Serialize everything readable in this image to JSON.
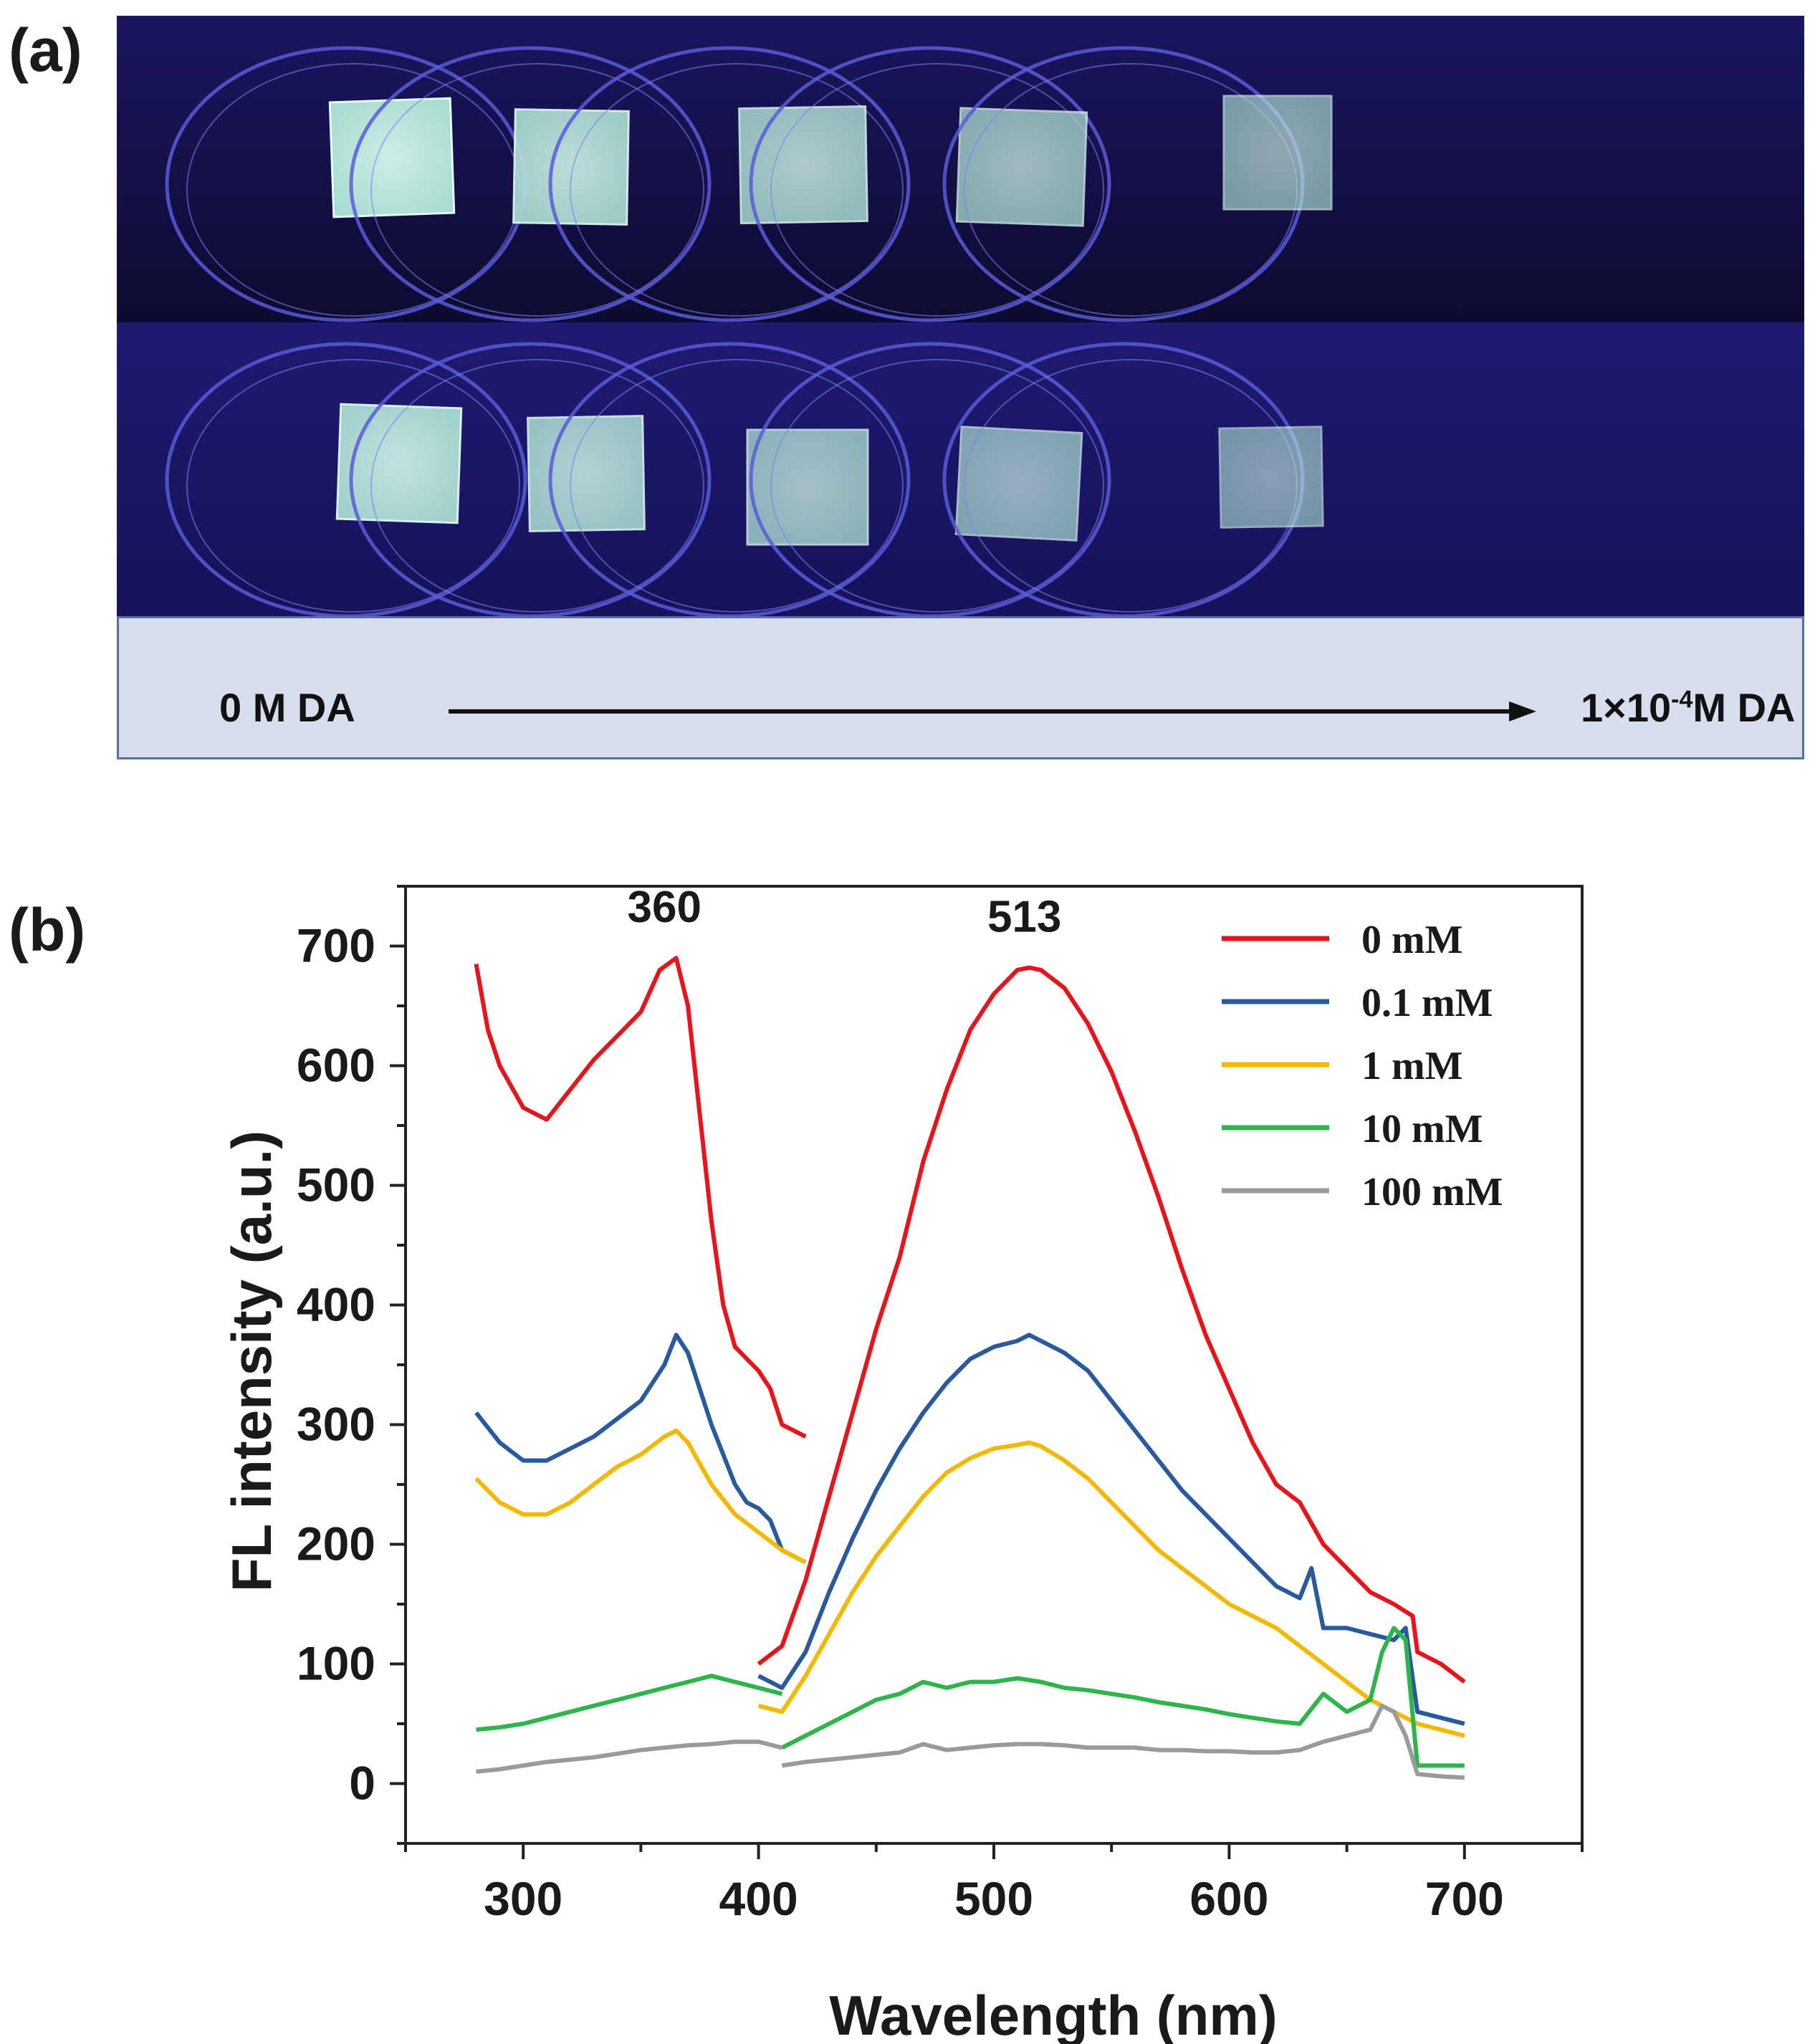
{
  "panel_a": {
    "label": "(a)",
    "start_label": "0 M DA",
    "end_label_prefix": "1×10",
    "end_label_exp": "-4",
    "end_label_suffix": "M DA",
    "colors": {
      "background": "#120e42",
      "dish_rim": "#5a5ad8",
      "film": "#b7e8dc",
      "band": "#d7dfef"
    }
  },
  "panel_b": {
    "label": "(b)"
  },
  "chart_data": {
    "type": "line",
    "xlabel": "Wavelength (nm)",
    "ylabel": "FL intensity (a.u.)",
    "xlim": [
      250,
      750
    ],
    "ylim": [
      -50,
      750
    ],
    "xticks": [
      300,
      400,
      500,
      600,
      700
    ],
    "yticks": [
      0,
      100,
      200,
      300,
      400,
      500,
      600,
      700
    ],
    "legend_position": "top-right",
    "annotations": [
      {
        "text": "360",
        "x": 360,
        "y": 720
      },
      {
        "text": "513",
        "x": 513,
        "y": 712
      }
    ],
    "series": [
      {
        "name": "0 mM",
        "color": "#e8141c",
        "segments": [
          {
            "x": [
              280,
              285,
              290,
              300,
              310,
              320,
              330,
              340,
              350,
              358,
              365,
              370,
              375,
              380,
              385,
              390,
              395,
              400,
              405,
              410,
              415,
              420
            ],
            "y": [
              685,
              630,
              600,
              565,
              555,
              580,
              605,
              625,
              645,
              680,
              690,
              650,
              560,
              470,
              400,
              365,
              355,
              345,
              330,
              300,
              295,
              290
            ]
          },
          {
            "x": [
              400,
              410,
              420,
              430,
              440,
              450,
              460,
              470,
              480,
              490,
              500,
              510,
              515,
              520,
              530,
              540,
              550,
              560,
              570,
              580,
              590,
              600,
              610,
              620,
              630,
              640,
              650,
              660,
              670,
              678,
              680,
              690,
              700
            ],
            "y": [
              100,
              115,
              170,
              240,
              310,
              380,
              440,
              520,
              580,
              630,
              660,
              680,
              682,
              680,
              665,
              635,
              595,
              545,
              490,
              430,
              375,
              330,
              285,
              250,
              235,
              200,
              180,
              160,
              150,
              140,
              110,
              100,
              85
            ]
          }
        ]
      },
      {
        "name": "0.1 mM",
        "color": "#2a5a9e",
        "segments": [
          {
            "x": [
              280,
              290,
              300,
              310,
              320,
              330,
              340,
              350,
              360,
              365,
              370,
              380,
              390,
              395,
              400,
              405,
              410,
              420
            ],
            "y": [
              310,
              285,
              270,
              270,
              280,
              290,
              305,
              320,
              350,
              375,
              360,
              300,
              250,
              235,
              230,
              220,
              195,
              185
            ]
          },
          {
            "x": [
              400,
              410,
              420,
              430,
              440,
              450,
              460,
              470,
              480,
              490,
              500,
              510,
              515,
              520,
              530,
              540,
              550,
              560,
              570,
              580,
              590,
              600,
              610,
              620,
              630,
              635,
              640,
              650,
              660,
              670,
              675,
              680,
              690,
              700
            ],
            "y": [
              90,
              80,
              110,
              160,
              205,
              245,
              280,
              310,
              335,
              355,
              365,
              370,
              375,
              370,
              360,
              345,
              320,
              295,
              270,
              245,
              225,
              205,
              185,
              165,
              155,
              180,
              130,
              130,
              125,
              120,
              130,
              60,
              55,
              50
            ]
          }
        ]
      },
      {
        "name": "1 mM",
        "color": "#f5b800",
        "segments": [
          {
            "x": [
              280,
              290,
              300,
              310,
              320,
              330,
              340,
              350,
              360,
              365,
              370,
              380,
              390,
              400,
              410,
              420
            ],
            "y": [
              255,
              235,
              225,
              225,
              235,
              250,
              265,
              275,
              290,
              295,
              285,
              250,
              225,
              210,
              195,
              185
            ]
          },
          {
            "x": [
              400,
              410,
              420,
              430,
              440,
              450,
              460,
              470,
              480,
              490,
              500,
              510,
              515,
              520,
              530,
              540,
              550,
              560,
              570,
              580,
              590,
              600,
              610,
              620,
              630,
              640,
              650,
              660,
              670,
              680,
              690,
              700
            ],
            "y": [
              65,
              60,
              90,
              125,
              160,
              190,
              215,
              240,
              260,
              272,
              280,
              283,
              285,
              282,
              270,
              255,
              235,
              215,
              195,
              180,
              165,
              150,
              140,
              130,
              115,
              100,
              85,
              70,
              60,
              50,
              45,
              40
            ]
          }
        ]
      },
      {
        "name": "10 mM",
        "color": "#2bb54a",
        "segments": [
          {
            "x": [
              280,
              290,
              300,
              310,
              320,
              330,
              340,
              350,
              360,
              370,
              380,
              390,
              400,
              410
            ],
            "y": [
              45,
              47,
              50,
              55,
              60,
              65,
              70,
              75,
              80,
              85,
              90,
              85,
              80,
              75
            ]
          },
          {
            "x": [
              410,
              420,
              430,
              440,
              450,
              460,
              470,
              480,
              490,
              500,
              510,
              520,
              530,
              540,
              550,
              560,
              570,
              580,
              590,
              600,
              610,
              620,
              630,
              640,
              650,
              660,
              665,
              670,
              675,
              680,
              690,
              700
            ],
            "y": [
              30,
              40,
              50,
              60,
              70,
              75,
              85,
              80,
              85,
              85,
              88,
              85,
              80,
              78,
              75,
              72,
              68,
              65,
              62,
              58,
              55,
              52,
              50,
              75,
              60,
              70,
              110,
              130,
              120,
              15,
              15,
              15
            ]
          }
        ]
      },
      {
        "name": "100 mM",
        "color": "#9a9a9a",
        "segments": [
          {
            "x": [
              280,
              290,
              300,
              310,
              320,
              330,
              340,
              350,
              360,
              370,
              380,
              390,
              400,
              410
            ],
            "y": [
              10,
              12,
              15,
              18,
              20,
              22,
              25,
              28,
              30,
              32,
              33,
              35,
              35,
              30
            ]
          },
          {
            "x": [
              410,
              420,
              430,
              440,
              450,
              460,
              470,
              480,
              490,
              500,
              510,
              520,
              530,
              540,
              550,
              560,
              570,
              580,
              590,
              600,
              610,
              620,
              630,
              640,
              650,
              660,
              665,
              670,
              675,
              680,
              690,
              700
            ],
            "y": [
              15,
              18,
              20,
              22,
              24,
              26,
              33,
              28,
              30,
              32,
              33,
              33,
              32,
              30,
              30,
              30,
              28,
              28,
              27,
              27,
              26,
              26,
              28,
              35,
              40,
              45,
              65,
              60,
              40,
              8,
              6,
              5
            ]
          }
        ]
      }
    ]
  }
}
